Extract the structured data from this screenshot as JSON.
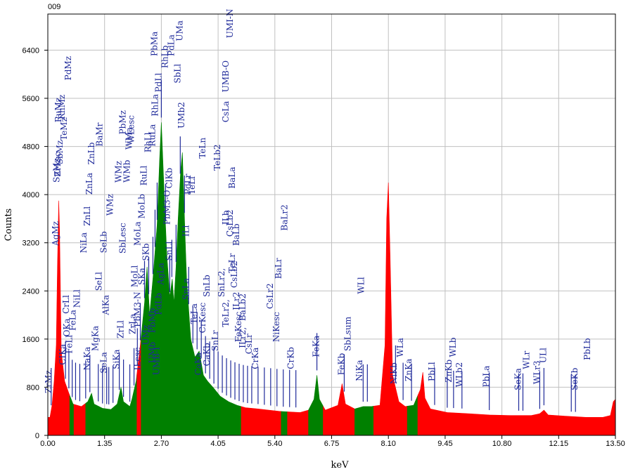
{
  "chart_data": {
    "type": "area",
    "sample_id": "009",
    "xlabel": "keV",
    "ylabel": "Counts",
    "xlim": [
      0.0,
      13.5
    ],
    "ylim": [
      0,
      7000
    ],
    "grid": true,
    "x_ticks": [
      "0.00",
      "1.35",
      "2.70",
      "4.05",
      "5.40",
      "6.75",
      "8.10",
      "9.45",
      "10.80",
      "12.15",
      "13.50"
    ],
    "y_ticks": [
      "0",
      "800",
      "1600",
      "2400",
      "3200",
      "4000",
      "4800",
      "5600",
      "6400"
    ],
    "colors": {
      "spectrum_red": "#ff0000",
      "spectrum_green": "#008000",
      "marker_blue": "#1f2a9a",
      "grid": "#c0c0c0"
    },
    "spectrum_points": [
      [
        0.05,
        300
      ],
      [
        0.1,
        500
      ],
      [
        0.15,
        900
      ],
      [
        0.2,
        1500
      ],
      [
        0.23,
        2800
      ],
      [
        0.26,
        3900
      ],
      [
        0.28,
        3400
      ],
      [
        0.32,
        1400
      ],
      [
        0.4,
        900
      ],
      [
        0.5,
        700
      ],
      [
        0.6,
        520
      ],
      [
        0.8,
        480
      ],
      [
        0.95,
        560
      ],
      [
        1.04,
        700
      ],
      [
        1.1,
        520
      ],
      [
        1.3,
        450
      ],
      [
        1.5,
        430
      ],
      [
        1.65,
        520
      ],
      [
        1.74,
        800
      ],
      [
        1.8,
        560
      ],
      [
        1.95,
        480
      ],
      [
        2.0,
        600
      ],
      [
        2.1,
        900
      ],
      [
        2.2,
        1500
      ],
      [
        2.3,
        2200
      ],
      [
        2.36,
        2800
      ],
      [
        2.42,
        2000
      ],
      [
        2.5,
        2600
      ],
      [
        2.6,
        3500
      ],
      [
        2.66,
        4600
      ],
      [
        2.7,
        5200
      ],
      [
        2.78,
        3800
      ],
      [
        2.83,
        3000
      ],
      [
        2.9,
        2300
      ],
      [
        2.96,
        2600
      ],
      [
        3.0,
        2200
      ],
      [
        3.05,
        2800
      ],
      [
        3.1,
        3600
      ],
      [
        3.16,
        4400
      ],
      [
        3.2,
        4700
      ],
      [
        3.26,
        3400
      ],
      [
        3.3,
        2600
      ],
      [
        3.4,
        1600
      ],
      [
        3.5,
        1300
      ],
      [
        3.6,
        1400
      ],
      [
        3.7,
        1000
      ],
      [
        3.8,
        900
      ],
      [
        3.95,
        780
      ],
      [
        4.1,
        650
      ],
      [
        4.3,
        560
      ],
      [
        4.5,
        500
      ],
      [
        4.7,
        460
      ],
      [
        5.0,
        440
      ],
      [
        5.5,
        400
      ],
      [
        6.0,
        380
      ],
      [
        6.2,
        420
      ],
      [
        6.33,
        600
      ],
      [
        6.4,
        1000
      ],
      [
        6.46,
        600
      ],
      [
        6.6,
        420
      ],
      [
        6.9,
        500
      ],
      [
        7.0,
        860
      ],
      [
        7.08,
        520
      ],
      [
        7.3,
        440
      ],
      [
        7.5,
        480
      ],
      [
        7.7,
        480
      ],
      [
        7.9,
        500
      ],
      [
        8.02,
        1500
      ],
      [
        8.06,
        3600
      ],
      [
        8.1,
        4200
      ],
      [
        8.14,
        3000
      ],
      [
        8.2,
        1000
      ],
      [
        8.35,
        560
      ],
      [
        8.5,
        480
      ],
      [
        8.7,
        500
      ],
      [
        8.86,
        760
      ],
      [
        8.92,
        1050
      ],
      [
        8.97,
        620
      ],
      [
        9.1,
        440
      ],
      [
        9.5,
        380
      ],
      [
        10.0,
        360
      ],
      [
        10.5,
        340
      ],
      [
        11.0,
        330
      ],
      [
        11.5,
        330
      ],
      [
        11.7,
        360
      ],
      [
        11.8,
        420
      ],
      [
        11.9,
        340
      ],
      [
        12.3,
        320
      ],
      [
        12.8,
        300
      ],
      [
        13.2,
        300
      ],
      [
        13.38,
        330
      ],
      [
        13.45,
        560
      ],
      [
        13.5,
        600
      ]
    ],
    "spectrum_regions": [
      {
        "x": [
          0.0,
          0.52
        ],
        "color": "red"
      },
      {
        "x": [
          0.52,
          0.62
        ],
        "color": "green"
      },
      {
        "x": [
          0.62,
          0.9
        ],
        "color": "red"
      },
      {
        "x": [
          0.9,
          2.12
        ],
        "color": "green"
      },
      {
        "x": [
          2.12,
          2.22
        ],
        "color": "red"
      },
      {
        "x": [
          2.22,
          3.7
        ],
        "color": "green"
      },
      {
        "x": [
          3.7,
          4.6
        ],
        "color": "green"
      },
      {
        "x": [
          4.6,
          5.55
        ],
        "color": "red"
      },
      {
        "x": [
          5.55,
          5.7
        ],
        "color": "green"
      },
      {
        "x": [
          5.7,
          6.2
        ],
        "color": "red"
      },
      {
        "x": [
          6.2,
          6.55
        ],
        "color": "green"
      },
      {
        "x": [
          6.55,
          7.3
        ],
        "color": "red"
      },
      {
        "x": [
          7.3,
          7.75
        ],
        "color": "green"
      },
      {
        "x": [
          7.75,
          8.55
        ],
        "color": "red"
      },
      {
        "x": [
          8.55,
          8.8
        ],
        "color": "green"
      },
      {
        "x": [
          8.8,
          13.5
        ],
        "color": "red"
      }
    ],
    "peak_labels": [
      {
        "text": "ZrMz",
        "x": 0.08,
        "y": 700
      },
      {
        "text": "CIKa",
        "x": 0.42,
        "y": 1170
      },
      {
        "text": "FeLl",
        "x": 0.58,
        "y": 1360
      },
      {
        "text": "OKa",
        "x": 0.52,
        "y": 1640
      },
      {
        "text": "FeLa",
        "x": 0.66,
        "y": 1740
      },
      {
        "text": "CrLl",
        "x": 0.5,
        "y": 2020
      },
      {
        "text": "NiLl",
        "x": 0.76,
        "y": 2120
      },
      {
        "text": "NaKa",
        "x": 1.0,
        "y": 1080
      },
      {
        "text": "MgKa",
        "x": 1.2,
        "y": 1400
      },
      {
        "text": "SeLa",
        "x": 1.4,
        "y": 1030
      },
      {
        "text": "SiKa",
        "x": 1.7,
        "y": 1100
      },
      {
        "text": "AlKa",
        "x": 1.45,
        "y": 2000
      },
      {
        "text": "SeLl",
        "x": 1.28,
        "y": 2400
      },
      {
        "text": "SeLb",
        "x": 1.4,
        "y": 3030
      },
      {
        "text": "NiLa",
        "x": 0.92,
        "y": 3030
      },
      {
        "text": "ZnLl",
        "x": 1.0,
        "y": 3480
      },
      {
        "text": "ZnLa",
        "x": 1.05,
        "y": 4000
      },
      {
        "text": "ZnLb",
        "x": 1.1,
        "y": 4500
      },
      {
        "text": "BaMr",
        "x": 1.3,
        "y": 4800
      },
      {
        "text": "WMz",
        "x": 1.55,
        "y": 3650
      },
      {
        "text": "WMz",
        "x": 1.75,
        "y": 4200
      },
      {
        "text": "ZrLl",
        "x": 1.8,
        "y": 1610
      },
      {
        "text": "ZrLa",
        "x": 2.08,
        "y": 1680
      },
      {
        "text": "PbM3-N",
        "x": 2.2,
        "y": 1800
      },
      {
        "text": "MoLl",
        "x": 2.13,
        "y": 2460
      },
      {
        "text": "SbLesc",
        "x": 1.85,
        "y": 3020
      },
      {
        "text": "MoLa",
        "x": 2.2,
        "y": 3150
      },
      {
        "text": "ILesc",
        "x": 2.2,
        "y": 1080
      },
      {
        "text": "PbMz",
        "x": 1.85,
        "y": 5000
      },
      {
        "text": "WMa",
        "x": 2.0,
        "y": 4750
      },
      {
        "text": "WMb",
        "x": 1.95,
        "y": 4200
      },
      {
        "text": "WLesc",
        "x": 2.05,
        "y": 4850
      },
      {
        "text": "MoLb",
        "x": 2.3,
        "y": 3600
      },
      {
        "text": "RuLl",
        "x": 2.35,
        "y": 4150
      },
      {
        "text": "RhLl",
        "x": 2.45,
        "y": 4700
      },
      {
        "text": "RuLa",
        "x": 2.55,
        "y": 4800
      },
      {
        "text": "RhLa",
        "x": 2.62,
        "y": 5300
      },
      {
        "text": "PdLl",
        "x": 2.7,
        "y": 5700
      },
      {
        "text": "PbMa",
        "x": 2.6,
        "y": 6300
      },
      {
        "text": "RhLb",
        "x": 2.85,
        "y": 6100
      },
      {
        "text": "PdLa",
        "x": 3.0,
        "y": 6300
      },
      {
        "text": "SbLl",
        "x": 3.15,
        "y": 5850
      },
      {
        "text": "UMa",
        "x": 3.2,
        "y": 6550
      },
      {
        "text": "ClKb",
        "x": 2.95,
        "y": 4100
      },
      {
        "text": "PbM3-O",
        "x": 2.9,
        "y": 3500
      },
      {
        "text": "SnLl",
        "x": 2.95,
        "y": 2900
      },
      {
        "text": "AgLa",
        "x": 2.75,
        "y": 2500
      },
      {
        "text": "PdLb",
        "x": 2.7,
        "y": 2000
      },
      {
        "text": "UMz",
        "x": 2.4,
        "y": 1500
      },
      {
        "text": "UMb",
        "x": 2.55,
        "y": 1200
      },
      {
        "text": "SKa",
        "x": 2.3,
        "y": 2500
      },
      {
        "text": "SKb",
        "x": 2.4,
        "y": 2900
      },
      {
        "text": "PbMb",
        "x": 2.55,
        "y": 1700
      },
      {
        "text": "UMB-I",
        "x": 2.65,
        "y": 1000
      },
      {
        "text": "SnLa",
        "x": 3.35,
        "y": 2250
      },
      {
        "text": "TeLa",
        "x": 3.55,
        "y": 1850
      },
      {
        "text": "CaKa",
        "x": 3.65,
        "y": 1000
      },
      {
        "text": "CrKesc",
        "x": 3.75,
        "y": 1700
      },
      {
        "text": "CaKb",
        "x": 3.85,
        "y": 1150
      },
      {
        "text": "SnLr",
        "x": 4.05,
        "y": 1400
      },
      {
        "text": "SnLb",
        "x": 3.85,
        "y": 2300
      },
      {
        "text": "ILl",
        "x": 3.35,
        "y": 3300
      },
      {
        "text": "PdLr",
        "x": 3.4,
        "y": 4000
      },
      {
        "text": "UMB-O",
        "x": 4.3,
        "y": 5700
      },
      {
        "text": "UMI-N",
        "x": 4.4,
        "y": 6600
      },
      {
        "text": "UMb2",
        "x": 3.25,
        "y": 5100
      },
      {
        "text": "TeLl",
        "x": 3.5,
        "y": 4000
      },
      {
        "text": "TeLn",
        "x": 3.75,
        "y": 4600
      },
      {
        "text": "CsLa",
        "x": 4.3,
        "y": 5200
      },
      {
        "text": "TeLb2",
        "x": 4.1,
        "y": 4400
      },
      {
        "text": "BaLa",
        "x": 4.45,
        "y": 4100
      },
      {
        "text": "ILb",
        "x": 4.3,
        "y": 3500
      },
      {
        "text": "CsLb2",
        "x": 4.4,
        "y": 3300
      },
      {
        "text": "BaLb",
        "x": 4.55,
        "y": 3150
      },
      {
        "text": "TeLr",
        "x": 4.45,
        "y": 2700
      },
      {
        "text": "CsLb2",
        "x": 4.5,
        "y": 2450
      },
      {
        "text": "ILr2",
        "x": 4.55,
        "y": 2080
      },
      {
        "text": "BaLb2",
        "x": 4.7,
        "y": 1900
      },
      {
        "text": "CsLr",
        "x": 4.85,
        "y": 1350
      },
      {
        "text": "CrKa",
        "x": 5.0,
        "y": 1100
      },
      {
        "text": "ILr2,",
        "x": 4.7,
        "y": 1450
      },
      {
        "text": "SnLr2,",
        "x": 4.2,
        "y": 2300
      },
      {
        "text": "TeLr2,",
        "x": 4.3,
        "y": 1800
      },
      {
        "text": "FeKesc",
        "x": 4.6,
        "y": 1550
      },
      {
        "text": "CsLr2",
        "x": 5.35,
        "y": 2100
      },
      {
        "text": "BaLr",
        "x": 5.55,
        "y": 2600
      },
      {
        "text": "NiKesc",
        "x": 5.5,
        "y": 1550
      },
      {
        "text": "CrKb",
        "x": 5.85,
        "y": 1100
      },
      {
        "text": "BaLr2",
        "x": 5.7,
        "y": 3400
      },
      {
        "text": "FeKa",
        "x": 6.45,
        "y": 1300
      },
      {
        "text": "FeKb",
        "x": 7.05,
        "y": 1000
      },
      {
        "text": "SbLsum",
        "x": 7.2,
        "y": 1400
      },
      {
        "text": "NiKa",
        "x": 7.48,
        "y": 900
      },
      {
        "text": "WLl",
        "x": 7.52,
        "y": 2350
      },
      {
        "text": "NiKb",
        "x": 8.3,
        "y": 850
      },
      {
        "text": "WLa",
        "x": 8.45,
        "y": 1300
      },
      {
        "text": "ZnKa",
        "x": 8.65,
        "y": 900
      },
      {
        "text": "PbLl",
        "x": 9.2,
        "y": 900
      },
      {
        "text": "ZnKb",
        "x": 9.6,
        "y": 880
      },
      {
        "text": "WLb",
        "x": 9.7,
        "y": 1300
      },
      {
        "text": "WLb2",
        "x": 9.85,
        "y": 800
      },
      {
        "text": "PbLa",
        "x": 10.5,
        "y": 800
      },
      {
        "text": "SeKa",
        "x": 11.25,
        "y": 750
      },
      {
        "text": "WLr",
        "x": 11.45,
        "y": 1100
      },
      {
        "text": "WLr3",
        "x": 11.7,
        "y": 850
      },
      {
        "text": "ULl",
        "x": 11.85,
        "y": 1200
      },
      {
        "text": "SeKb",
        "x": 12.6,
        "y": 750
      },
      {
        "text": "PbLb",
        "x": 12.9,
        "y": 1250
      },
      {
        "text": "AgMz",
        "x": 0.25,
        "y": 3150
      },
      {
        "text": "SnMz",
        "x": 0.28,
        "y": 4200
      },
      {
        "text": "ZrLsc",
        "x": 0.3,
        "y": 4300
      },
      {
        "text": "SbMz",
        "x": 0.35,
        "y": 4500
      },
      {
        "text": "TeMz",
        "x": 0.45,
        "y": 4900
      },
      {
        "text": "RuMz",
        "x": 0.32,
        "y": 5200
      },
      {
        "text": "RhMz",
        "x": 0.4,
        "y": 5250
      },
      {
        "text": "PdMz",
        "x": 0.55,
        "y": 5900
      }
    ],
    "marker_lines_kev": [
      0.08,
      0.42,
      0.5,
      0.58,
      0.66,
      0.76,
      0.9,
      1.0,
      1.2,
      1.3,
      1.4,
      1.45,
      1.55,
      1.7,
      1.8,
      1.95,
      2.05,
      2.13,
      2.2,
      2.3,
      2.4,
      2.5,
      2.55,
      2.6,
      2.7,
      2.8,
      2.9,
      2.95,
      3.05,
      3.15,
      3.25,
      3.35,
      3.45,
      3.55,
      3.65,
      3.75,
      3.85,
      3.95,
      4.05,
      4.15,
      4.25,
      4.35,
      4.45,
      4.55,
      4.65,
      4.75,
      4.85,
      5.0,
      5.15,
      5.3,
      5.45,
      5.6,
      5.75,
      5.9,
      6.4,
      7.05,
      7.5,
      7.6,
      8.27,
      8.45,
      8.65,
      9.2,
      9.5,
      9.65,
      9.85,
      10.5,
      11.2,
      11.3,
      11.7,
      11.8,
      12.45,
      12.55
    ]
  }
}
